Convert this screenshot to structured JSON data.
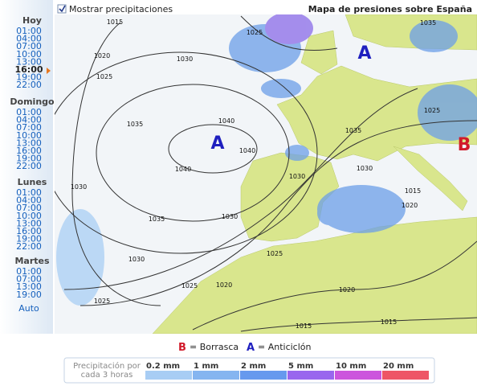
{
  "header": {
    "checkbox_label": "Mostrar precipitaciones",
    "title": "Mapa de presiones sobre España"
  },
  "sidebar": {
    "days": [
      {
        "name": "Hoy",
        "times": [
          "01:00",
          "04:00",
          "07:00",
          "10:00",
          "13:00",
          "16:00",
          "19:00",
          "22:00"
        ]
      },
      {
        "name": "Domingo",
        "times": [
          "01:00",
          "04:00",
          "07:00",
          "10:00",
          "13:00",
          "16:00",
          "19:00",
          "22:00"
        ]
      },
      {
        "name": "Lunes",
        "times": [
          "01:00",
          "04:00",
          "07:00",
          "10:00",
          "13:00",
          "16:00",
          "19:00",
          "22:00"
        ]
      },
      {
        "name": "Martes",
        "times": [
          "01:00",
          "07:00",
          "13:00",
          "19:00"
        ]
      }
    ],
    "auto": "Auto"
  },
  "map": {
    "centers": [
      "A",
      "A",
      "B"
    ],
    "isobar_labels": [
      "1015",
      "1025",
      "1020",
      "1030",
      "1025",
      "1035",
      "1040",
      "1040",
      "1040",
      "1030",
      "1035",
      "1035",
      "1030",
      "1030",
      "1025",
      "1025",
      "1020",
      "1020",
      "1015",
      "1015",
      "1025",
      "1030",
      "1035",
      "1030",
      "1020",
      "1015",
      "1025"
    ]
  },
  "legend": {
    "low_key": "B",
    "low_label": "= Borrasca",
    "high_key": "A",
    "high_label": "= Anticiclón"
  },
  "precipitation": {
    "label": [
      "Precipitación por",
      "cada 3 horas"
    ],
    "levels": [
      "0.2 mm",
      "1 mm",
      "2 mm",
      "5 mm",
      "10 mm",
      "20 mm"
    ]
  }
}
